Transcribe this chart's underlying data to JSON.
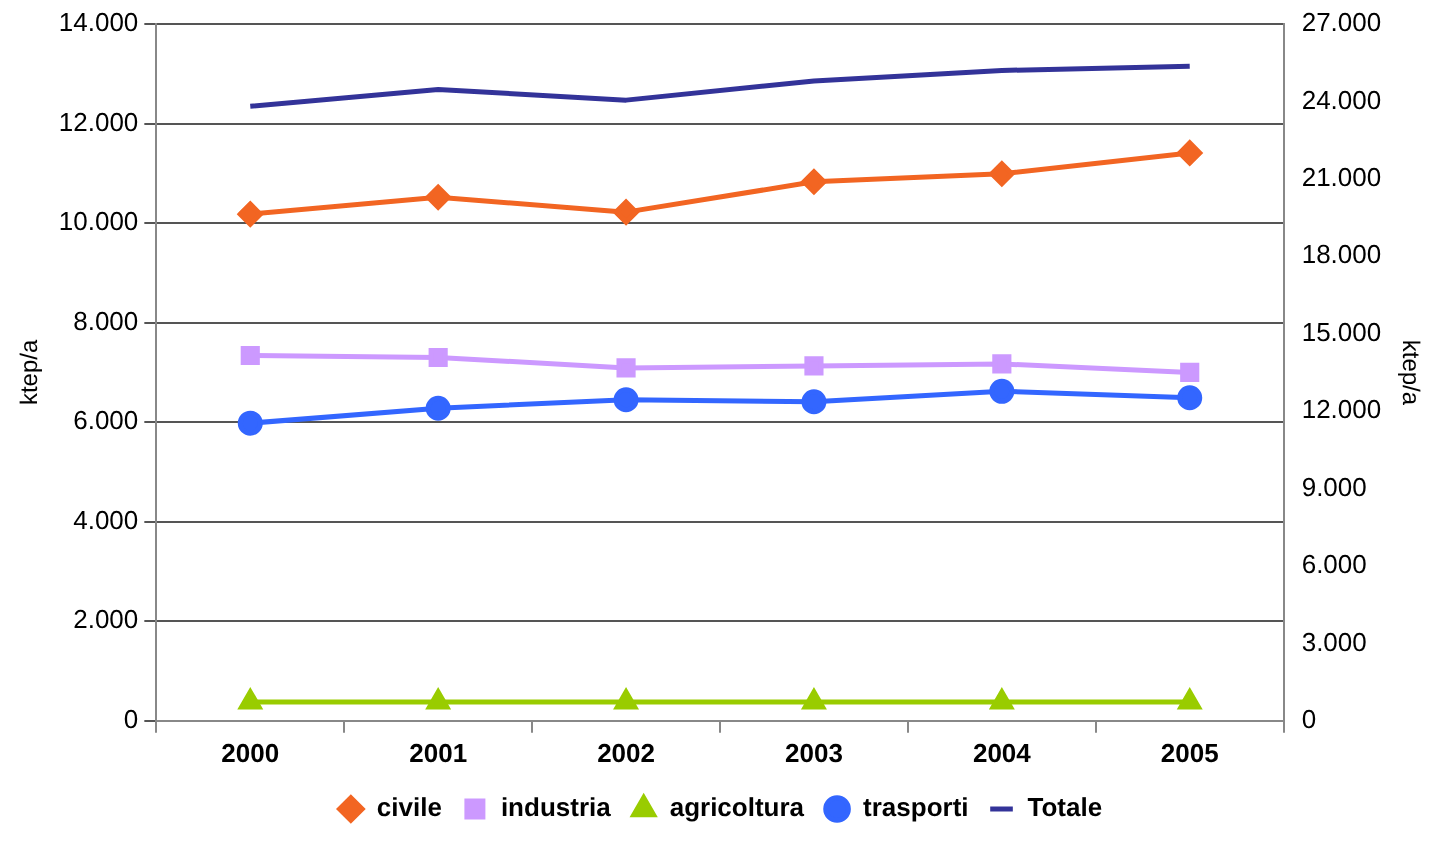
{
  "chart_data": {
    "type": "line",
    "xlabel": null,
    "ylabel": "ktep/a",
    "y2label": "ktep/a",
    "categories": [
      "2000",
      "2001",
      "2002",
      "2003",
      "2004",
      "2005"
    ],
    "series": [
      {
        "name": "civile",
        "color": "#f26522",
        "marker": "diamond",
        "values": [
          10180,
          10520,
          10220,
          10830,
          10990,
          11410
        ]
      },
      {
        "name": "industria",
        "color": "#cc99ff",
        "marker": "square",
        "values": [
          7340,
          7300,
          7090,
          7130,
          7170,
          7000
        ]
      },
      {
        "name": "agricoltura",
        "color": "#99cc00",
        "marker": "triangle",
        "values": [
          380,
          380,
          380,
          380,
          380,
          380
        ]
      },
      {
        "name": "trasporti",
        "color": "#3366ff",
        "marker": "circle",
        "values": [
          5980,
          6280,
          6450,
          6410,
          6620,
          6490
        ]
      },
      {
        "name": "Totale",
        "color": "#333399",
        "marker": "none",
        "axis": "y2",
        "values": [
          23810,
          24460,
          24050,
          24790,
          25200,
          25360
        ]
      }
    ],
    "ylim": [
      0,
      14000
    ],
    "yticks": [
      0,
      {
        "value": 2000,
        "label": "2.000"
      },
      {
        "value": 4000,
        "label": "4.000"
      },
      {
        "value": 6000,
        "label": "6.000"
      },
      {
        "value": 8000,
        "label": "8.000"
      },
      {
        "value": 10000,
        "label": "10.000"
      },
      {
        "value": 12000,
        "label": "12.000"
      },
      {
        "value": 14000,
        "label": "14.000"
      }
    ],
    "y2lim": [
      0,
      27000
    ],
    "y2ticks": [
      0,
      {
        "value": 3000,
        "label": "3.000"
      },
      {
        "value": 6000,
        "label": "6.000"
      },
      {
        "value": 9000,
        "label": "9.000"
      },
      {
        "value": 12000,
        "label": "12.000"
      },
      {
        "value": 15000,
        "label": "15.000"
      },
      {
        "value": 18000,
        "label": "18.000"
      },
      {
        "value": 21000,
        "label": "21.000"
      },
      {
        "value": 24000,
        "label": "24.000"
      },
      {
        "value": 27000,
        "label": "27.000"
      }
    ],
    "grid": "y",
    "legend": "bottom",
    "line_style": "solid"
  }
}
